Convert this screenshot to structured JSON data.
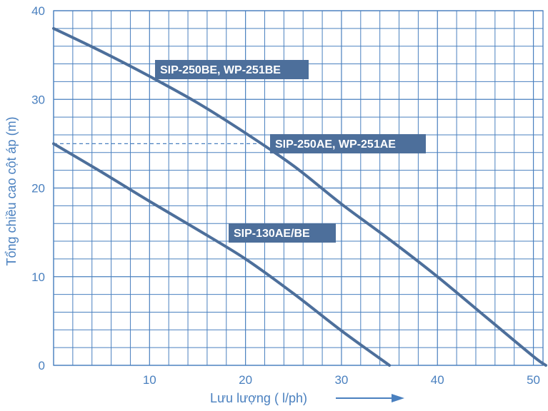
{
  "chart_data": {
    "type": "line",
    "title": "",
    "xlabel": "Lưu lượng ( l/ph)",
    "ylabel": "Tổng chiều cao cột áp (m)",
    "xlim": [
      0,
      51
    ],
    "ylim": [
      0,
      40
    ],
    "x_ticks": [
      10,
      20,
      30,
      40,
      50
    ],
    "y_ticks": [
      0,
      10,
      20,
      30,
      40
    ],
    "grid": true,
    "series": [
      {
        "name": "SIP-250BE, WP-251BE",
        "x": [
          0,
          5,
          10,
          15,
          20,
          25,
          30,
          35,
          40,
          45,
          50,
          51.3
        ],
        "y": [
          38,
          35.4,
          32.6,
          29.6,
          26.2,
          22.5,
          18.2,
          14.2,
          10,
          5.5,
          1,
          0
        ]
      },
      {
        "name": "SIP-130AE/BE",
        "x": [
          0,
          5,
          10,
          15,
          20,
          25,
          30,
          35
        ],
        "y": [
          25,
          21.8,
          18.5,
          15.3,
          12,
          8.1,
          3.9,
          0
        ]
      }
    ],
    "annotations": [
      {
        "text": "SIP-250BE, WP-251BE",
        "series": 0
      },
      {
        "text": "SIP-250AE, WP-251AE",
        "series": 0
      },
      {
        "text": "SIP-130AE/BE",
        "series": 1
      }
    ],
    "reference_line": {
      "y": 25,
      "x_end": 22,
      "style": "dashed"
    },
    "colors": {
      "curve": "#4d6f9b",
      "grid": "#4a80bf",
      "text": "#4a80bf",
      "label_bg": "#4d6f9b",
      "label_text": "#ffffff"
    }
  }
}
